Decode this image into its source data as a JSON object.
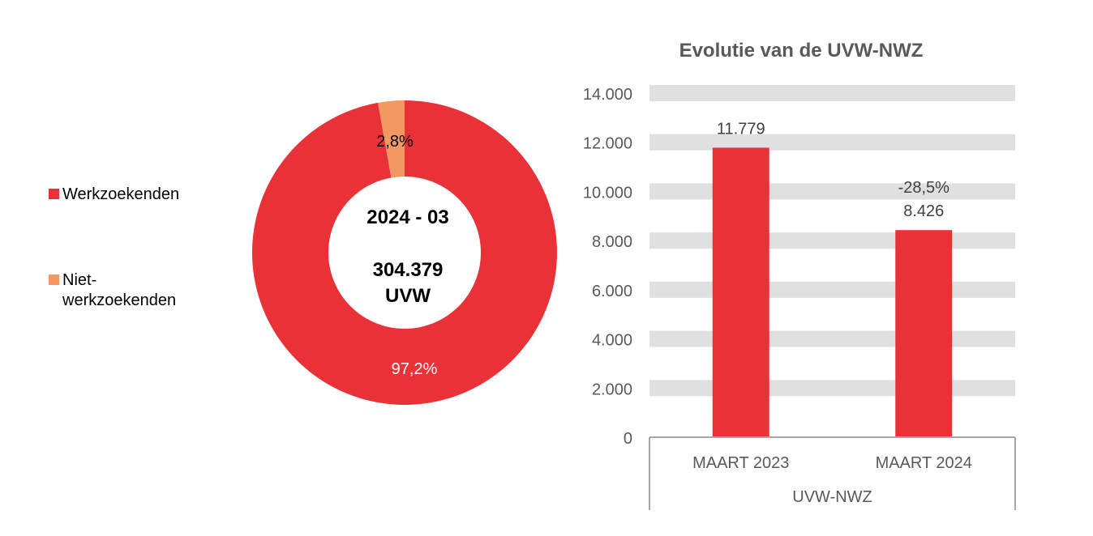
{
  "chart_data": [
    {
      "type": "pie",
      "variant": "donut",
      "center_label": {
        "period": "2024 - 03",
        "total": "304.379",
        "unit": "UVW"
      },
      "slices": [
        {
          "name": "Werkzoekenden",
          "value": 97.2,
          "label": "97,2%",
          "color": "#E83238"
        },
        {
          "name": "Niet-werkzoekenden",
          "value": 2.8,
          "label": "2,8%",
          "color": "#F29863"
        }
      ],
      "legend": {
        "placement": "left",
        "entries": [
          "Werkzoekenden",
          "Niet-werkzoekenden"
        ]
      }
    },
    {
      "type": "bar",
      "title": "Evolutie van de UVW-NWZ",
      "categories": [
        "MAART 2023",
        "MAART 2024"
      ],
      "group_label": "UVW-NWZ",
      "values": [
        11779,
        8426
      ],
      "data_labels": [
        "11.779",
        "8.426"
      ],
      "change_label": "-28,5%",
      "ylim": [
        0,
        14000
      ],
      "yticks": [
        0,
        2000,
        4000,
        6000,
        8000,
        10000,
        12000,
        14000
      ],
      "ytick_labels": [
        "0",
        "2.000",
        "4.000",
        "6.000",
        "8.000",
        "10.000",
        "12.000",
        "14.000"
      ],
      "grid": "horizontal bands",
      "bar_color": "#E83238",
      "grid_color": "#E0E0E0"
    }
  ]
}
